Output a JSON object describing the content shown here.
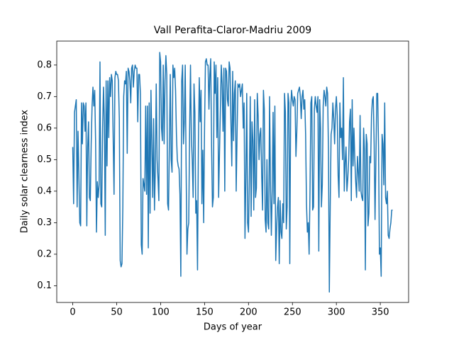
{
  "chart_data": {
    "type": "line",
    "title": "Vall Perafita-Claror-Madriu 2009",
    "x_label": "Days of year",
    "y_label": "Daily solar clearness index",
    "color": "#1f77b4",
    "xlim": [
      -18.2,
      382.2
    ],
    "ylim": [
      0.047,
      0.876
    ],
    "xticks": [
      0,
      50,
      100,
      150,
      200,
      250,
      300,
      350
    ],
    "yticks": [
      0.1,
      0.2,
      0.3,
      0.4,
      0.5,
      0.6,
      0.7,
      0.8
    ],
    "x": [
      0,
      1,
      2,
      3,
      4,
      5,
      6,
      7,
      8,
      9,
      10,
      11,
      12,
      13,
      14,
      15,
      16,
      17,
      18,
      19,
      20,
      21,
      22,
      23,
      24,
      25,
      26,
      27,
      28,
      29,
      30,
      31,
      32,
      33,
      34,
      35,
      36,
      37,
      38,
      39,
      40,
      41,
      42,
      43,
      44,
      45,
      46,
      47,
      48,
      49,
      50,
      51,
      52,
      53,
      54,
      55,
      56,
      57,
      58,
      59,
      60,
      61,
      62,
      63,
      64,
      65,
      66,
      67,
      68,
      69,
      70,
      71,
      72,
      73,
      74,
      75,
      76,
      77,
      78,
      79,
      80,
      81,
      82,
      83,
      84,
      85,
      86,
      87,
      88,
      89,
      90,
      91,
      92,
      93,
      94,
      95,
      96,
      97,
      98,
      99,
      100,
      101,
      102,
      103,
      104,
      105,
      106,
      107,
      108,
      109,
      110,
      111,
      112,
      113,
      114,
      115,
      116,
      117,
      118,
      119,
      120,
      121,
      122,
      123,
      124,
      125,
      126,
      127,
      128,
      129,
      130,
      131,
      132,
      133,
      134,
      135,
      136,
      137,
      138,
      139,
      140,
      141,
      142,
      143,
      144,
      145,
      146,
      147,
      148,
      149,
      150,
      151,
      152,
      153,
      154,
      155,
      156,
      157,
      158,
      159,
      160,
      161,
      162,
      163,
      164,
      165,
      166,
      167,
      168,
      169,
      170,
      171,
      172,
      173,
      174,
      175,
      176,
      177,
      178,
      179,
      180,
      181,
      182,
      183,
      184,
      185,
      186,
      187,
      188,
      189,
      190,
      191,
      192,
      193,
      194,
      195,
      196,
      197,
      198,
      199,
      200,
      201,
      202,
      203,
      204,
      205,
      206,
      207,
      208,
      209,
      210,
      211,
      212,
      213,
      214,
      215,
      216,
      217,
      218,
      219,
      220,
      221,
      222,
      223,
      224,
      225,
      226,
      227,
      228,
      229,
      230,
      231,
      232,
      233,
      234,
      235,
      236,
      237,
      238,
      239,
      240,
      241,
      242,
      243,
      244,
      245,
      246,
      247,
      248,
      249,
      250,
      251,
      252,
      253,
      254,
      255,
      256,
      257,
      258,
      259,
      260,
      261,
      262,
      263,
      264,
      265,
      266,
      267,
      268,
      269,
      270,
      271,
      272,
      273,
      274,
      275,
      276,
      277,
      278,
      279,
      280,
      281,
      282,
      283,
      284,
      285,
      286,
      287,
      288,
      289,
      290,
      291,
      292,
      293,
      294,
      295,
      296,
      297,
      298,
      299,
      300,
      301,
      302,
      303,
      304,
      305,
      306,
      307,
      308,
      309,
      310,
      311,
      312,
      313,
      314,
      315,
      316,
      317,
      318,
      319,
      320,
      321,
      322,
      323,
      324,
      325,
      326,
      327,
      328,
      329,
      330,
      331,
      332,
      333,
      334,
      335,
      336,
      337,
      338,
      339,
      340,
      341,
      342,
      343,
      344,
      345,
      346,
      347,
      348,
      349,
      350,
      351,
      352,
      353,
      354,
      355,
      356,
      357,
      358,
      359,
      360,
      361,
      362,
      363,
      364
    ],
    "values": [
      0.54,
      0.36,
      0.65,
      0.67,
      0.69,
      0.35,
      0.59,
      0.45,
      0.3,
      0.29,
      0.68,
      0.55,
      0.68,
      0.67,
      0.59,
      0.68,
      0.29,
      0.54,
      0.62,
      0.38,
      0.37,
      0.55,
      0.67,
      0.73,
      0.67,
      0.72,
      0.56,
      0.27,
      0.43,
      0.38,
      0.42,
      0.81,
      0.36,
      0.35,
      0.6,
      0.73,
      0.62,
      0.26,
      0.75,
      0.48,
      0.75,
      0.57,
      0.76,
      0.7,
      0.77,
      0.75,
      0.57,
      0.39,
      0.76,
      0.78,
      0.77,
      0.77,
      0.75,
      0.63,
      0.18,
      0.16,
      0.17,
      0.35,
      0.7,
      0.75,
      0.74,
      0.78,
      0.52,
      0.79,
      0.78,
      0.75,
      0.68,
      0.79,
      0.8,
      0.73,
      0.78,
      0.8,
      0.79,
      0.79,
      0.62,
      0.77,
      0.77,
      0.71,
      0.23,
      0.2,
      0.44,
      0.42,
      0.4,
      0.67,
      0.39,
      0.67,
      0.22,
      0.68,
      0.33,
      0.72,
      0.55,
      0.38,
      0.63,
      0.34,
      0.47,
      0.74,
      0.5,
      0.44,
      0.37,
      0.84,
      0.81,
      0.6,
      0.56,
      0.8,
      0.55,
      0.75,
      0.83,
      0.77,
      0.36,
      0.34,
      0.55,
      0.77,
      0.5,
      0.46,
      0.8,
      0.76,
      0.79,
      0.72,
      0.58,
      0.5,
      0.48,
      0.47,
      0.39,
      0.13,
      0.75,
      0.8,
      0.55,
      0.62,
      0.8,
      0.48,
      0.2,
      0.28,
      0.3,
      0.59,
      0.8,
      0.57,
      0.5,
      0.38,
      0.74,
      0.65,
      0.33,
      0.37,
      0.15,
      0.55,
      0.76,
      0.62,
      0.72,
      0.36,
      0.53,
      0.3,
      0.6,
      0.81,
      0.82,
      0.8,
      0.8,
      0.66,
      0.77,
      0.82,
      0.54,
      0.35,
      0.38,
      0.81,
      0.71,
      0.8,
      0.57,
      0.76,
      0.38,
      0.52,
      0.66,
      0.8,
      0.74,
      0.59,
      0.79,
      0.4,
      0.79,
      0.78,
      0.69,
      0.67,
      0.81,
      0.79,
      0.62,
      0.48,
      0.78,
      0.56,
      0.71,
      0.75,
      0.4,
      0.58,
      0.74,
      0.73,
      0.74,
      0.7,
      0.72,
      0.74,
      0.6,
      0.68,
      0.25,
      0.44,
      0.71,
      0.3,
      0.27,
      0.44,
      0.7,
      0.32,
      0.62,
      0.56,
      0.34,
      0.69,
      0.38,
      0.41,
      0.71,
      0.64,
      0.5,
      0.58,
      0.6,
      0.45,
      0.34,
      0.72,
      0.66,
      0.31,
      0.27,
      0.5,
      0.3,
      0.28,
      0.7,
      0.42,
      0.26,
      0.4,
      0.65,
      0.36,
      0.67,
      0.18,
      0.28,
      0.35,
      0.38,
      0.17,
      0.37,
      0.27,
      0.25,
      0.36,
      0.3,
      0.71,
      0.65,
      0.28,
      0.35,
      0.71,
      0.68,
      0.17,
      0.66,
      0.72,
      0.69,
      0.67,
      0.7,
      0.69,
      0.51,
      0.59,
      0.71,
      0.72,
      0.73,
      0.7,
      0.63,
      0.7,
      0.72,
      0.66,
      0.69,
      0.58,
      0.36,
      0.27,
      0.3,
      0.2,
      0.4,
      0.68,
      0.7,
      0.34,
      0.35,
      0.66,
      0.7,
      0.67,
      0.65,
      0.7,
      0.21,
      0.69,
      0.6,
      0.35,
      0.42,
      0.67,
      0.72,
      0.7,
      0.67,
      0.73,
      0.71,
      0.53,
      0.08,
      0.35,
      0.58,
      0.6,
      0.68,
      0.63,
      0.55,
      0.66,
      0.7,
      0.64,
      0.45,
      0.38,
      0.68,
      0.57,
      0.6,
      0.5,
      0.76,
      0.4,
      0.49,
      0.54,
      0.4,
      0.44,
      0.5,
      0.62,
      0.66,
      0.37,
      0.69,
      0.48,
      0.6,
      0.5,
      0.43,
      0.38,
      0.51,
      0.46,
      0.4,
      0.64,
      0.4,
      0.38,
      0.37,
      0.6,
      0.53,
      0.15,
      0.58,
      0.55,
      0.29,
      0.33,
      0.51,
      0.49,
      0.64,
      0.69,
      0.7,
      0.55,
      0.31,
      0.5,
      0.71,
      0.71,
      0.54,
      0.2,
      0.22,
      0.13,
      0.58,
      0.55,
      0.42,
      0.68,
      0.38,
      0.36,
      0.4,
      0.26,
      0.25,
      0.28,
      0.3,
      0.34,
      0.34
    ]
  }
}
